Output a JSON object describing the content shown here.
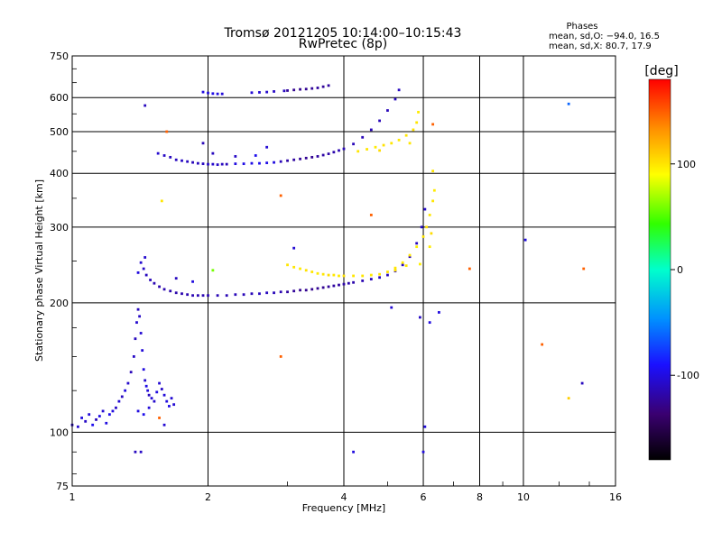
{
  "chart_data": {
    "type": "scatter",
    "title": "Tromsø 20121205 10:14:00–10:15:43",
    "subtitle": "RwPretec (8p)",
    "stats": {
      "heading": "Phases",
      "line_o": "mean, sd,O: −94.0, 16.5",
      "line_x": "mean, sd,X:  80.7, 17.9"
    },
    "xlabel": "Frequency [MHz]",
    "ylabel": "Stationary phase Virtual Height [km]",
    "x_scale": "log",
    "y_scale": "log",
    "xlim": [
      1,
      16
    ],
    "ylim": [
      75,
      750
    ],
    "x_ticks": [
      1,
      2,
      4,
      6,
      8,
      10,
      16
    ],
    "x_tick_labels": [
      "1",
      "2",
      "4",
      "6",
      "8",
      "10",
      "16"
    ],
    "y_ticks": [
      75,
      100,
      200,
      300,
      400,
      500,
      600,
      750
    ],
    "y_tick_labels": [
      "75",
      "100",
      "200",
      "300",
      "400",
      "500",
      "600",
      "750"
    ],
    "grid": true,
    "colorbar": {
      "label": "[deg]",
      "range": [
        -180,
        180
      ],
      "ticks": [
        100,
        0,
        -100
      ],
      "tick_labels": [
        "100",
        "0",
        "-100"
      ]
    },
    "series": [
      {
        "points": [
          [
            1.0,
            104,
            -110
          ],
          [
            1.03,
            103,
            -105
          ],
          [
            1.05,
            108,
            -100
          ],
          [
            1.07,
            106,
            -108
          ],
          [
            1.09,
            110,
            -102
          ],
          [
            1.11,
            104,
            -95
          ],
          [
            1.13,
            107,
            -112
          ],
          [
            1.15,
            109,
            -98
          ],
          [
            1.17,
            112,
            -104
          ],
          [
            1.19,
            105,
            -100
          ],
          [
            1.21,
            110,
            -96
          ],
          [
            1.23,
            112,
            -100
          ],
          [
            1.25,
            114,
            -108
          ],
          [
            1.27,
            118,
            -104
          ],
          [
            1.29,
            121,
            -110
          ],
          [
            1.31,
            125,
            -100
          ],
          [
            1.33,
            130,
            -106
          ],
          [
            1.35,
            138,
            -112
          ],
          [
            1.37,
            150,
            -108
          ],
          [
            1.38,
            165,
            -110
          ],
          [
            1.39,
            180,
            -105
          ],
          [
            1.4,
            193,
            -110
          ],
          [
            1.41,
            186,
            -108
          ],
          [
            1.42,
            170,
            -104
          ],
          [
            1.43,
            155,
            -102
          ],
          [
            1.44,
            140,
            -100
          ],
          [
            1.45,
            132,
            -106
          ],
          [
            1.46,
            128,
            -98
          ],
          [
            1.47,
            125,
            -102
          ],
          [
            1.48,
            122,
            -110
          ],
          [
            1.5,
            120,
            -104
          ],
          [
            1.52,
            118,
            -106
          ],
          [
            1.54,
            124,
            -100
          ],
          [
            1.56,
            130,
            -104
          ],
          [
            1.58,
            126,
            -108
          ],
          [
            1.6,
            122,
            -102
          ],
          [
            1.62,
            118,
            -100
          ],
          [
            1.64,
            115,
            -98
          ],
          [
            1.66,
            120,
            -104
          ],
          [
            1.68,
            116,
            -104
          ],
          [
            1.4,
            112,
            -100
          ],
          [
            1.44,
            110,
            -96
          ],
          [
            1.48,
            114,
            -102
          ],
          [
            1.56,
            108,
            150
          ],
          [
            1.38,
            90,
            -110
          ],
          [
            1.42,
            90,
            -108
          ],
          [
            1.6,
            104,
            -104
          ]
        ]
      },
      {
        "points": [
          [
            1.4,
            235,
            -100
          ],
          [
            1.42,
            248,
            -105
          ],
          [
            1.44,
            240,
            -108
          ],
          [
            1.46,
            232,
            -110
          ],
          [
            1.49,
            226,
            -112
          ],
          [
            1.52,
            222,
            -114
          ],
          [
            1.56,
            218,
            -115
          ],
          [
            1.6,
            215,
            -115
          ],
          [
            1.65,
            213,
            -116
          ],
          [
            1.7,
            211,
            -116
          ],
          [
            1.75,
            210,
            -115
          ],
          [
            1.8,
            209,
            -115
          ],
          [
            1.85,
            208,
            -114
          ],
          [
            1.9,
            208,
            -114
          ],
          [
            1.95,
            208,
            -114
          ],
          [
            2.0,
            208,
            -114
          ],
          [
            2.1,
            208,
            -113
          ],
          [
            2.2,
            208,
            -113
          ],
          [
            2.3,
            209,
            -112
          ],
          [
            2.4,
            209,
            -112
          ],
          [
            2.5,
            210,
            -112
          ],
          [
            2.6,
            210,
            -110
          ],
          [
            2.7,
            211,
            -110
          ],
          [
            2.8,
            211,
            -112
          ],
          [
            2.9,
            212,
            -115
          ],
          [
            3.0,
            212,
            -120
          ],
          [
            3.1,
            213,
            -122
          ],
          [
            3.2,
            214,
            -125
          ],
          [
            3.3,
            214,
            -125
          ],
          [
            3.4,
            215,
            -125
          ],
          [
            3.5,
            216,
            -124
          ],
          [
            3.6,
            217,
            -124
          ],
          [
            3.7,
            218,
            -122
          ],
          [
            3.8,
            219,
            -120
          ],
          [
            3.9,
            220,
            -120
          ],
          [
            4.0,
            221,
            -118
          ],
          [
            4.1,
            222,
            -116
          ],
          [
            4.2,
            223,
            -116
          ],
          [
            4.4,
            225,
            -114
          ],
          [
            4.6,
            227,
            -112
          ],
          [
            4.8,
            229,
            -112
          ],
          [
            5.0,
            232,
            -110
          ],
          [
            5.2,
            237,
            -110
          ],
          [
            5.4,
            245,
            -110
          ],
          [
            5.6,
            256,
            -112
          ],
          [
            5.8,
            275,
            -110
          ],
          [
            5.95,
            300,
            -108
          ],
          [
            6.05,
            330,
            -106
          ],
          [
            1.45,
            255,
            -105
          ],
          [
            1.7,
            228,
            -110
          ],
          [
            1.85,
            224,
            -100
          ],
          [
            2.05,
            238,
            60
          ]
        ]
      },
      {
        "points": [
          [
            3.0,
            245,
            100
          ],
          [
            3.1,
            242,
            100
          ],
          [
            3.2,
            240,
            98
          ],
          [
            3.3,
            238,
            102
          ],
          [
            3.4,
            236,
            100
          ],
          [
            3.5,
            234,
            98
          ],
          [
            3.6,
            233,
            100
          ],
          [
            3.7,
            232,
            104
          ],
          [
            3.8,
            232,
            100
          ],
          [
            3.9,
            231,
            98
          ],
          [
            4.0,
            231,
            102
          ],
          [
            4.2,
            231,
            100
          ],
          [
            4.4,
            231,
            100
          ],
          [
            4.6,
            232,
            98
          ],
          [
            4.8,
            233,
            100
          ],
          [
            5.0,
            236,
            102
          ],
          [
            5.2,
            241,
            100
          ],
          [
            5.4,
            248,
            98
          ],
          [
            5.6,
            258,
            100
          ],
          [
            5.8,
            270,
            96
          ],
          [
            6.0,
            285,
            100
          ],
          [
            6.1,
            300,
            104
          ],
          [
            6.2,
            320,
            100
          ],
          [
            6.3,
            345,
            100
          ],
          [
            6.35,
            365,
            98
          ],
          [
            6.25,
            290,
            104
          ],
          [
            6.2,
            270,
            98
          ],
          [
            5.9,
            246,
            96
          ],
          [
            5.5,
            244,
            100
          ],
          [
            5.2,
            238,
            102
          ]
        ]
      },
      {
        "points": [
          [
            1.55,
            445,
            -105
          ],
          [
            1.6,
            440,
            -108
          ],
          [
            1.65,
            436,
            -110
          ],
          [
            1.7,
            430,
            -110
          ],
          [
            1.75,
            428,
            -108
          ],
          [
            1.8,
            426,
            -110
          ],
          [
            1.85,
            424,
            -112
          ],
          [
            1.9,
            422,
            -110
          ],
          [
            1.95,
            421,
            -110
          ],
          [
            2.0,
            420,
            -108
          ],
          [
            2.05,
            420,
            -106
          ],
          [
            2.1,
            419,
            -108
          ],
          [
            2.15,
            420,
            -110
          ],
          [
            2.2,
            420,
            -112
          ],
          [
            2.3,
            421,
            -100
          ],
          [
            2.4,
            421,
            -98
          ],
          [
            2.5,
            422,
            -98
          ],
          [
            2.6,
            422,
            -96
          ],
          [
            2.7,
            423,
            -98
          ],
          [
            2.8,
            424,
            -100
          ],
          [
            2.9,
            426,
            -112
          ],
          [
            3.0,
            428,
            -118
          ],
          [
            3.1,
            430,
            -120
          ],
          [
            3.2,
            432,
            -122
          ],
          [
            3.3,
            434,
            -124
          ],
          [
            3.4,
            436,
            -124
          ],
          [
            3.5,
            438,
            -120
          ],
          [
            3.6,
            441,
            -118
          ],
          [
            3.7,
            444,
            -118
          ],
          [
            3.8,
            448,
            -116
          ],
          [
            3.9,
            452,
            -114
          ],
          [
            4.0,
            456,
            -112
          ],
          [
            4.2,
            468,
            -112
          ],
          [
            4.4,
            485,
            -112
          ],
          [
            4.6,
            505,
            -112
          ],
          [
            4.8,
            530,
            -112
          ],
          [
            5.0,
            560,
            -112
          ],
          [
            5.2,
            595,
            -110
          ],
          [
            5.3,
            625,
            -110
          ],
          [
            2.05,
            445,
            -110
          ],
          [
            2.3,
            438,
            -108
          ],
          [
            2.55,
            440,
            -96
          ],
          [
            1.95,
            470,
            -112
          ],
          [
            2.7,
            460,
            -104
          ]
        ]
      },
      {
        "points": [
          [
            4.3,
            450,
            100
          ],
          [
            4.5,
            455,
            100
          ],
          [
            4.7,
            460,
            98
          ],
          [
            4.9,
            465,
            102
          ],
          [
            5.1,
            470,
            100
          ],
          [
            5.3,
            478,
            98
          ],
          [
            5.5,
            490,
            100
          ],
          [
            5.7,
            505,
            102
          ],
          [
            5.8,
            525,
            100
          ],
          [
            5.85,
            555,
            98
          ],
          [
            5.6,
            470,
            100
          ],
          [
            4.8,
            452,
            104
          ]
        ]
      },
      {
        "points": [
          [
            1.95,
            618,
            -100
          ],
          [
            2.0,
            615,
            -100
          ],
          [
            2.05,
            613,
            -98
          ],
          [
            2.1,
            612,
            -100
          ],
          [
            2.15,
            612,
            -102
          ],
          [
            2.5,
            616,
            -104
          ],
          [
            2.6,
            617,
            -104
          ],
          [
            2.7,
            618,
            -106
          ],
          [
            2.8,
            620,
            -108
          ],
          [
            2.95,
            622,
            -110
          ],
          [
            3.0,
            623,
            -122
          ],
          [
            3.1,
            625,
            -125
          ],
          [
            3.2,
            627,
            -125
          ],
          [
            3.3,
            628,
            -124
          ],
          [
            3.4,
            630,
            -122
          ],
          [
            3.5,
            632,
            -120
          ],
          [
            3.6,
            636,
            -122
          ],
          [
            3.7,
            640,
            -120
          ]
        ]
      },
      {
        "points": [
          [
            1.45,
            575,
            -110
          ],
          [
            1.58,
            345,
            100
          ],
          [
            1.62,
            500,
            150
          ],
          [
            2.9,
            355,
            150
          ],
          [
            2.9,
            150,
            150
          ],
          [
            3.1,
            268,
            -104
          ],
          [
            4.6,
            320,
            150
          ],
          [
            5.1,
            195,
            -104
          ],
          [
            5.9,
            185,
            -108
          ],
          [
            6.0,
            90,
            -100
          ],
          [
            6.05,
            103,
            -100
          ],
          [
            6.2,
            180,
            -100
          ],
          [
            6.5,
            190,
            -100
          ],
          [
            7.6,
            240,
            150
          ],
          [
            10.1,
            280,
            -100
          ],
          [
            11.0,
            160,
            150
          ],
          [
            12.6,
            580,
            -60
          ],
          [
            12.6,
            120,
            110
          ],
          [
            13.6,
            240,
            150
          ],
          [
            13.5,
            130,
            -110
          ],
          [
            4.2,
            90,
            -100
          ],
          [
            6.3,
            405,
            100
          ],
          [
            6.3,
            520,
            150
          ]
        ]
      }
    ]
  }
}
